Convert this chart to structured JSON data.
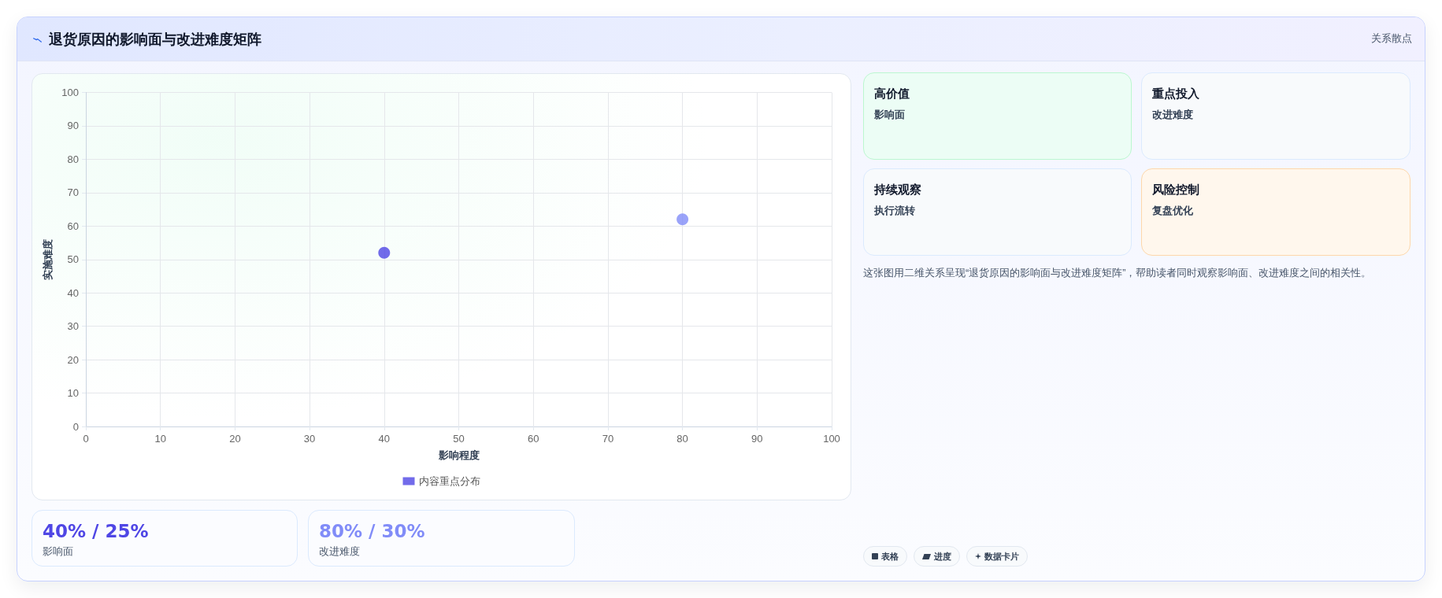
{
  "chart_data": [
    {
      "type": "scatter",
      "title": "退货原因的影响面与改进难度矩阵",
      "annotations": [
        "关系散点",
        "这张图用二维关系呈现“退货原因的影响面与改进难度矩阵”，帮助读者同时观察影响面、改进难度之间的相关性。"
      ],
      "xlabel": "影响程度",
      "ylabel": "实施难度",
      "xlim": [
        0,
        100
      ],
      "xticks": [
        0,
        10,
        20,
        30,
        40,
        50,
        60,
        70,
        80,
        90,
        100
      ],
      "ylim": [
        0,
        100
      ],
      "yticks": [
        0,
        10,
        20,
        30,
        40,
        50,
        60,
        70,
        80,
        90,
        100
      ],
      "grid": true,
      "legend": "bottom",
      "marker": "circle",
      "series": [
        {
          "name": "内容重点分布",
          "color": "#4f46e5",
          "colors": [
            "#4f46e5",
            "#818cf8"
          ],
          "x": [
            40,
            80
          ],
          "values": [
            52,
            62
          ]
        }
      ]
    },
    {
      "type": "other",
      "title": "高价值",
      "annotations": [
        "影响面"
      ]
    },
    {
      "type": "other",
      "title": "重点投入",
      "annotations": [
        "改进难度"
      ]
    },
    {
      "type": "other",
      "title": "持续观察",
      "annotations": [
        "执行流转"
      ]
    },
    {
      "type": "other",
      "title": "风险控制",
      "annotations": [
        "复盘优化"
      ]
    },
    {
      "type": "other",
      "title": "40% / 25%",
      "annotations": [
        "影响面"
      ]
    },
    {
      "type": "other",
      "title": "80% / 30%",
      "annotations": [
        "改进难度"
      ]
    },
    {
      "type": "other",
      "annotations": [
        "表格",
        "进度",
        "数据卡片"
      ]
    }
  ]
}
